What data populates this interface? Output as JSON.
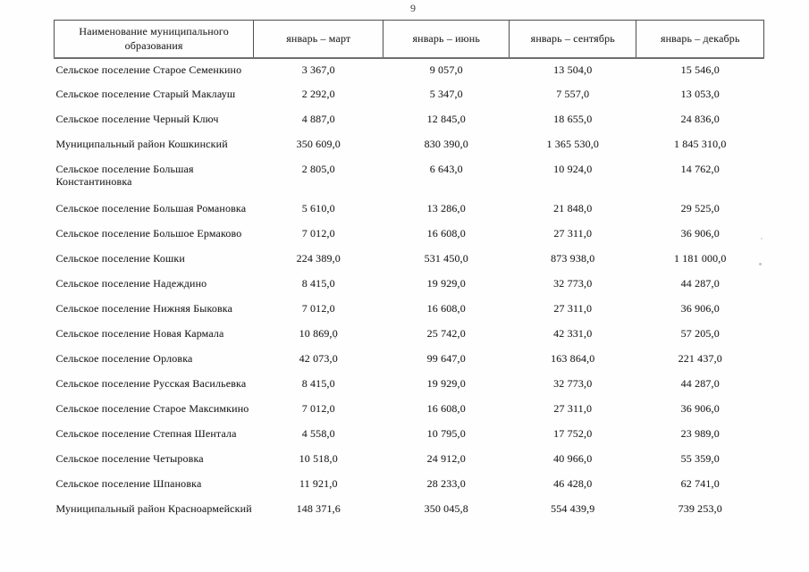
{
  "page": {
    "number": "9"
  },
  "colors": {
    "paper": "#fefefe",
    "text": "#1f1f1f",
    "border": "#4f4f4f",
    "header_rule": "#6f6f6f"
  },
  "table": {
    "columns": [
      "Наименование муниципального образования",
      "январь – март",
      "январь – июнь",
      "январь – сентябрь",
      "январь – декабрь"
    ],
    "rows": [
      {
        "name": "Сельское поселение Старое Семенкино",
        "values": [
          "3 367,0",
          "9 057,0",
          "13 504,0",
          "15 546,0"
        ]
      },
      {
        "name": "Сельское поселение Старый Маклауш",
        "values": [
          "2 292,0",
          "5 347,0",
          "7 557,0",
          "13 053,0"
        ]
      },
      {
        "name": "Сельское поселение Черный Ключ",
        "values": [
          "4 887,0",
          "12 845,0",
          "18 655,0",
          "24 836,0"
        ]
      },
      {
        "name": "Муниципальный район Кошкинский",
        "values": [
          "350 609,0",
          "830 390,0",
          "1 365 530,0",
          "1 845 310,0"
        ]
      },
      {
        "name": "Сельское поселение Большая Константиновка",
        "values": [
          "2 805,0",
          "6 643,0",
          "10 924,0",
          "14 762,0"
        ]
      },
      {
        "name": "Сельское поселение Большая Романовка",
        "values": [
          "5 610,0",
          "13 286,0",
          "21 848,0",
          "29 525,0"
        ]
      },
      {
        "name": "Сельское поселение Большое Ермаково",
        "values": [
          "7 012,0",
          "16 608,0",
          "27 311,0",
          "36 906,0"
        ]
      },
      {
        "name": "Сельское поселение Кошки",
        "values": [
          "224 389,0",
          "531 450,0",
          "873 938,0",
          "1 181 000,0"
        ]
      },
      {
        "name": "Сельское поселение Надеждино",
        "values": [
          "8 415,0",
          "19 929,0",
          "32 773,0",
          "44 287,0"
        ]
      },
      {
        "name": "Сельское поселение Нижняя Быковка",
        "values": [
          "7 012,0",
          "16 608,0",
          "27 311,0",
          "36 906,0"
        ]
      },
      {
        "name": "Сельское поселение Новая Кармала",
        "values": [
          "10 869,0",
          "25 742,0",
          "42 331,0",
          "57 205,0"
        ]
      },
      {
        "name": "Сельское поселение Орловка",
        "values": [
          "42 073,0",
          "99 647,0",
          "163 864,0",
          "221 437,0"
        ]
      },
      {
        "name": "Сельское поселение Русская Васильевка",
        "values": [
          "8 415,0",
          "19 929,0",
          "32 773,0",
          "44 287,0"
        ]
      },
      {
        "name": "Сельское поселение Старое Максимкино",
        "values": [
          "7 012,0",
          "16 608,0",
          "27 311,0",
          "36 906,0"
        ]
      },
      {
        "name": "Сельское поселение Степная Шентала",
        "values": [
          "4 558,0",
          "10 795,0",
          "17 752,0",
          "23 989,0"
        ]
      },
      {
        "name": "Сельское поселение Четыровка",
        "values": [
          "10 518,0",
          "24 912,0",
          "40 966,0",
          "55 359,0"
        ]
      },
      {
        "name": "Сельское поселение Шпановка",
        "values": [
          "11 921,0",
          "28 233,0",
          "46 428,0",
          "62 741,0"
        ]
      },
      {
        "name": "Муниципальный район Красноармейский",
        "values": [
          "148 371,6",
          "350 045,8",
          "554 439,9",
          "739 253,0"
        ]
      }
    ]
  }
}
